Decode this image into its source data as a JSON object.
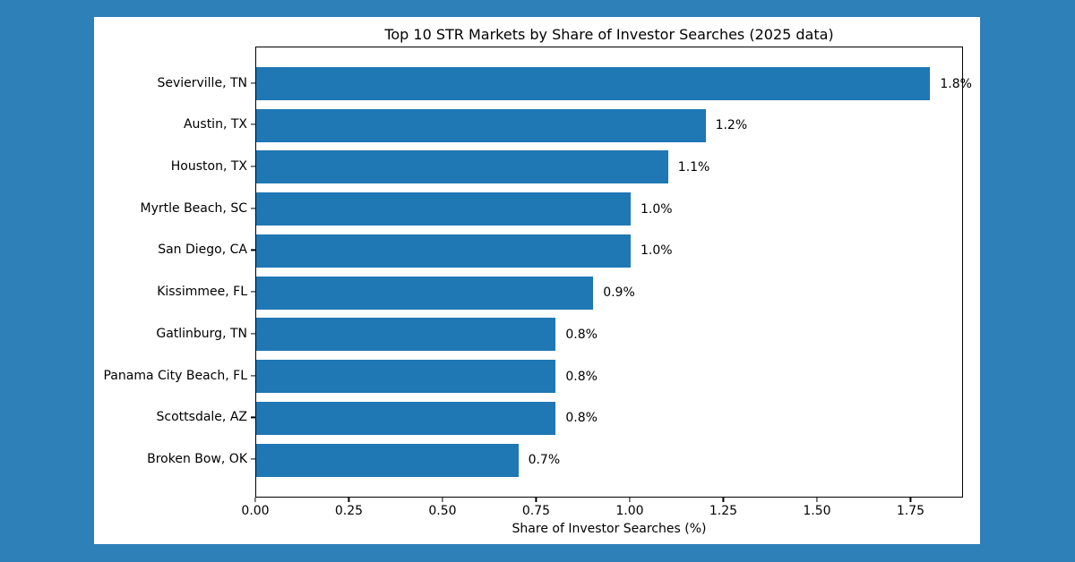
{
  "chart_data": {
    "type": "bar",
    "orientation": "horizontal",
    "title": "Top 10 STR Markets by Share of Investor Searches (2025 data)",
    "xlabel": "Share of Investor Searches (%)",
    "ylabel": "",
    "categories": [
      "Sevierville, TN",
      "Austin, TX",
      "Houston, TX",
      "Myrtle Beach, SC",
      "San Diego, CA",
      "Kissimmee, FL",
      "Gatlinburg, TN",
      "Panama City Beach, FL",
      "Scottsdale, AZ",
      "Broken Bow, OK"
    ],
    "values": [
      1.8,
      1.2,
      1.1,
      1.0,
      1.0,
      0.9,
      0.8,
      0.8,
      0.8,
      0.7
    ],
    "value_labels": [
      "1.8%",
      "1.2%",
      "1.1%",
      "1.0%",
      "1.0%",
      "0.9%",
      "0.8%",
      "0.8%",
      "0.8%",
      "0.7%"
    ],
    "xlim": [
      0,
      1.89
    ],
    "xticks": [
      0.0,
      0.25,
      0.5,
      0.75,
      1.0,
      1.25,
      1.5,
      1.75
    ],
    "xtick_labels": [
      "0.00",
      "0.25",
      "0.50",
      "0.75",
      "1.00",
      "1.25",
      "1.50",
      "1.75"
    ],
    "grid": false,
    "legend": "none"
  },
  "colors": {
    "bar": "#1f77b4",
    "figure_background": "#ffffff",
    "page_background": "#2e80b9",
    "text": "#000000",
    "spine": "#000000"
  }
}
